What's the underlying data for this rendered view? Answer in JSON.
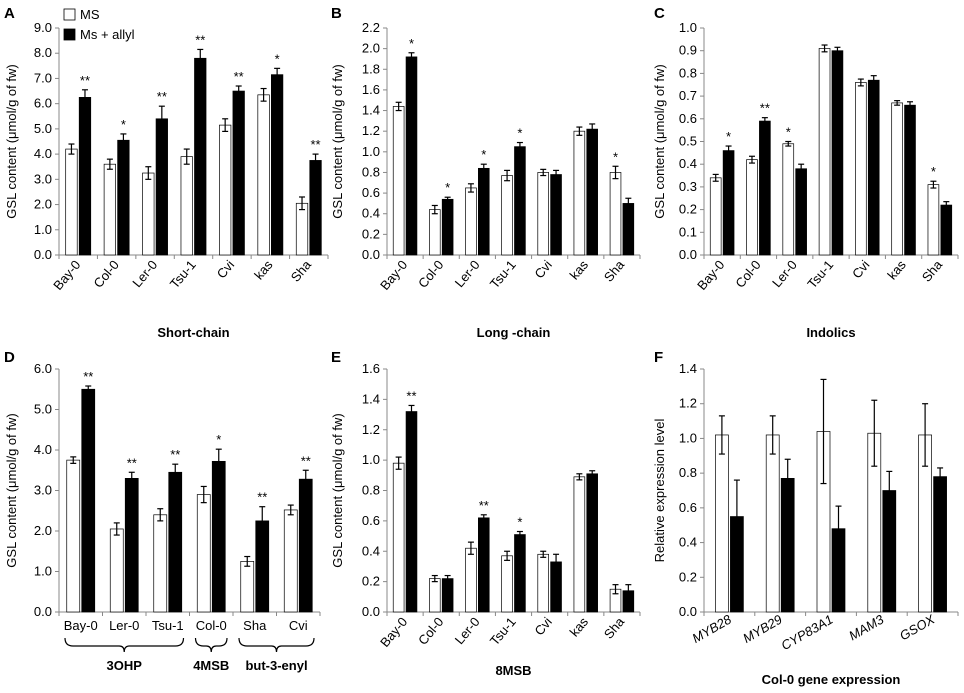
{
  "legend": {
    "open_label": "MS",
    "filled_label": "Ms + allyl"
  },
  "colors": {
    "open": "#ffffff",
    "filled": "#000000",
    "axis": "#888888",
    "text": "#000000"
  },
  "chart_data": [
    {
      "panel": "A",
      "type": "bar",
      "xlabel": "Short-chain",
      "ylabel": "GSL content (μmol/g of fw)",
      "ylim": [
        0,
        9
      ],
      "yticks": [
        "0.0",
        "1.0",
        "2.0",
        "3.0",
        "4.0",
        "5.0",
        "6.0",
        "7.0",
        "8.0",
        "9.0"
      ],
      "categories": [
        "Bay-0",
        "Col-0",
        "Ler-0",
        "Tsu-1",
        "Cvi",
        "kas",
        "Sha"
      ],
      "series": [
        {
          "name": "MS",
          "values": [
            4.2,
            3.6,
            3.25,
            3.9,
            5.15,
            6.35,
            2.05
          ],
          "errors": [
            0.2,
            0.2,
            0.25,
            0.3,
            0.25,
            0.25,
            0.25
          ]
        },
        {
          "name": "Ms + allyl",
          "values": [
            6.25,
            4.55,
            5.4,
            7.8,
            6.5,
            7.15,
            3.75
          ],
          "errors": [
            0.3,
            0.25,
            0.5,
            0.35,
            0.2,
            0.25,
            0.25
          ]
        }
      ],
      "annotations": [
        "**",
        "*",
        "**",
        "**",
        "**",
        "*",
        "**"
      ]
    },
    {
      "panel": "B",
      "type": "bar",
      "xlabel": "Long -chain",
      "ylabel": "GSL content (μmol/g of fw)",
      "ylim": [
        0,
        2.2
      ],
      "yticks": [
        "0.0",
        "0.2",
        "0.4",
        "0.6",
        "0.8",
        "1.0",
        "1.2",
        "1.4",
        "1.6",
        "1.8",
        "2.0",
        "2.2"
      ],
      "categories": [
        "Bay-0",
        "Col-0",
        "Ler-0",
        "Tsu-1",
        "Cvi",
        "kas",
        "Sha"
      ],
      "series": [
        {
          "name": "MS",
          "values": [
            1.44,
            0.44,
            0.65,
            0.77,
            0.8,
            1.2,
            0.8
          ],
          "errors": [
            0.04,
            0.04,
            0.04,
            0.05,
            0.03,
            0.04,
            0.06
          ]
        },
        {
          "name": "Ms + allyl",
          "values": [
            1.92,
            0.54,
            0.84,
            1.05,
            0.78,
            1.22,
            0.5
          ],
          "errors": [
            0.04,
            0.02,
            0.04,
            0.04,
            0.04,
            0.05,
            0.05
          ]
        }
      ],
      "annotations": [
        "*",
        "*",
        "*",
        "*",
        "",
        "",
        "*"
      ]
    },
    {
      "panel": "C",
      "type": "bar",
      "xlabel": "Indolics",
      "ylabel": "GSL content (μmol/g of fw)",
      "ylim": [
        0,
        1.0
      ],
      "yticks": [
        "0.0",
        "0.1",
        "0.2",
        "0.3",
        "0.4",
        "0.5",
        "0.6",
        "0.7",
        "0.8",
        "0.9",
        "1.0"
      ],
      "categories": [
        "Bay-0",
        "Col-0",
        "Ler-0",
        "Tsu-1",
        "Cvi",
        "kas",
        "Sha"
      ],
      "series": [
        {
          "name": "MS",
          "values": [
            0.34,
            0.42,
            0.49,
            0.91,
            0.76,
            0.67,
            0.31
          ],
          "errors": [
            0.015,
            0.015,
            0.01,
            0.015,
            0.015,
            0.01,
            0.015
          ]
        },
        {
          "name": "Ms + allyl",
          "values": [
            0.46,
            0.59,
            0.38,
            0.9,
            0.77,
            0.66,
            0.22
          ],
          "errors": [
            0.02,
            0.015,
            0.02,
            0.015,
            0.02,
            0.015,
            0.015
          ]
        }
      ],
      "annotations": [
        "*",
        "**",
        "*",
        "",
        "",
        "",
        "*"
      ]
    },
    {
      "panel": "D",
      "type": "bar",
      "xlabel": "",
      "ylabel": "GSL content (μmol/g of fw)",
      "ylim": [
        0,
        6.0
      ],
      "yticks": [
        "0.0",
        "1.0",
        "2.0",
        "3.0",
        "4.0",
        "5.0",
        "6.0"
      ],
      "categories": [
        "Bay-0",
        "Ler-0",
        "Tsu-1",
        "Col-0",
        "Sha",
        "Cvi"
      ],
      "groups": [
        {
          "label": "3OHP",
          "from": 0,
          "to": 2
        },
        {
          "label": "4MSB",
          "from": 3,
          "to": 3
        },
        {
          "label": "but-3-enyl",
          "from": 4,
          "to": 5
        }
      ],
      "series": [
        {
          "name": "MS",
          "values": [
            3.75,
            2.05,
            2.4,
            2.9,
            1.25,
            2.52
          ],
          "errors": [
            0.08,
            0.15,
            0.15,
            0.2,
            0.12,
            0.12
          ]
        },
        {
          "name": "Ms + allyl",
          "values": [
            5.5,
            3.3,
            3.45,
            3.72,
            2.25,
            3.28
          ],
          "errors": [
            0.08,
            0.15,
            0.2,
            0.3,
            0.35,
            0.22
          ]
        }
      ],
      "annotations": [
        "**",
        "**",
        "**",
        "*",
        "**",
        "**"
      ]
    },
    {
      "panel": "E",
      "type": "bar",
      "xlabel": "8MSB",
      "ylabel": "GSL content (μmol/g of fw)",
      "ylim": [
        0,
        1.6
      ],
      "yticks": [
        "0.0",
        "0.2",
        "0.4",
        "0.6",
        "0.8",
        "1.0",
        "1.2",
        "1.4",
        "1.6"
      ],
      "categories": [
        "Bay-0",
        "Col-0",
        "Ler-0",
        "Tsu-1",
        "Cvi",
        "kas",
        "Sha"
      ],
      "series": [
        {
          "name": "MS",
          "values": [
            0.98,
            0.22,
            0.42,
            0.37,
            0.38,
            0.89,
            0.15
          ],
          "errors": [
            0.04,
            0.02,
            0.04,
            0.03,
            0.02,
            0.02,
            0.03
          ]
        },
        {
          "name": "Ms + allyl",
          "values": [
            1.32,
            0.22,
            0.62,
            0.51,
            0.33,
            0.91,
            0.14
          ],
          "errors": [
            0.04,
            0.02,
            0.02,
            0.02,
            0.05,
            0.02,
            0.04
          ]
        }
      ],
      "annotations": [
        "**",
        "",
        "**",
        "*",
        "",
        "",
        ""
      ]
    },
    {
      "panel": "F",
      "type": "bar",
      "xlabel": "Col-0 gene expression",
      "ylabel": "Relative expression level",
      "ylim": [
        0,
        1.4
      ],
      "yticks": [
        "0.0",
        "0.2",
        "0.4",
        "0.6",
        "0.8",
        "1.0",
        "1.2",
        "1.4"
      ],
      "categories": [
        "MYB28",
        "MYB29",
        "CYP83A1",
        "MAM3",
        "GSOX"
      ],
      "italic_categories": true,
      "series": [
        {
          "name": "MS",
          "values": [
            1.02,
            1.02,
            1.04,
            1.03,
            1.02
          ],
          "errors": [
            0.11,
            0.11,
            0.3,
            0.19,
            0.18
          ]
        },
        {
          "name": "Ms + allyl",
          "values": [
            0.55,
            0.77,
            0.48,
            0.7,
            0.78
          ],
          "errors": [
            0.21,
            0.11,
            0.13,
            0.11,
            0.05
          ]
        }
      ],
      "annotations": [
        "",
        "",
        "",
        "",
        ""
      ]
    }
  ]
}
